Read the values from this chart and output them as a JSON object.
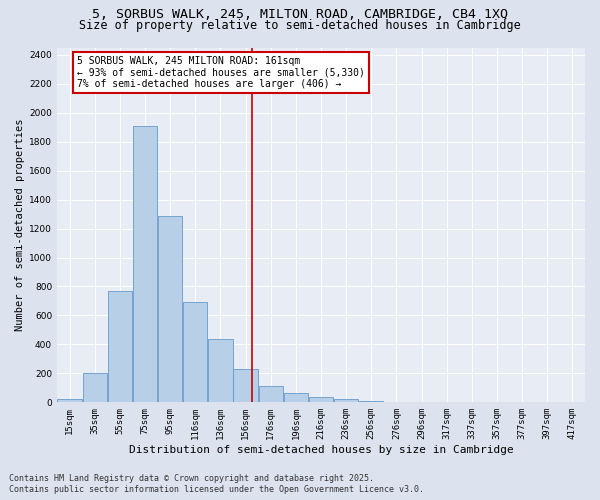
{
  "title1": "5, SORBUS WALK, 245, MILTON ROAD, CAMBRIDGE, CB4 1XQ",
  "title2": "Size of property relative to semi-detached houses in Cambridge",
  "xlabel": "Distribution of semi-detached houses by size in Cambridge",
  "ylabel": "Number of semi-detached properties",
  "footer1": "Contains HM Land Registry data © Crown copyright and database right 2025.",
  "footer2": "Contains public sector information licensed under the Open Government Licence v3.0.",
  "categories": [
    "15sqm",
    "35sqm",
    "55sqm",
    "75sqm",
    "95sqm",
    "116sqm",
    "136sqm",
    "156sqm",
    "176sqm",
    "196sqm",
    "216sqm",
    "236sqm",
    "256sqm",
    "276sqm",
    "296sqm",
    "317sqm",
    "337sqm",
    "357sqm",
    "377sqm",
    "397sqm",
    "417sqm"
  ],
  "values": [
    20,
    200,
    770,
    1910,
    1285,
    690,
    435,
    230,
    110,
    65,
    35,
    20,
    10,
    5,
    2,
    2,
    0,
    0,
    0,
    0,
    0
  ],
  "bar_color": "#b8cfe8",
  "bar_edge_color": "#6699cc",
  "marker_line_color": "#cc0000",
  "annotation_line1": "5 SORBUS WALK, 245 MILTON ROAD: 161sqm",
  "annotation_line2": "← 93% of semi-detached houses are smaller (5,330)",
  "annotation_line3": "7% of semi-detached houses are larger (406) →",
  "annotation_box_color": "#ffffff",
  "annotation_border_color": "#cc0000",
  "ylim": [
    0,
    2450
  ],
  "yticks": [
    0,
    200,
    400,
    600,
    800,
    1000,
    1200,
    1400,
    1600,
    1800,
    2000,
    2200,
    2400
  ],
  "bg_color": "#dde3ee",
  "plot_bg_color": "#e8edf5",
  "grid_color": "#ffffff",
  "title_fontsize": 9.5,
  "subtitle_fontsize": 8.5,
  "tick_fontsize": 6.5,
  "ylabel_fontsize": 7.5,
  "xlabel_fontsize": 8,
  "footer_fontsize": 6,
  "annot_fontsize": 7
}
